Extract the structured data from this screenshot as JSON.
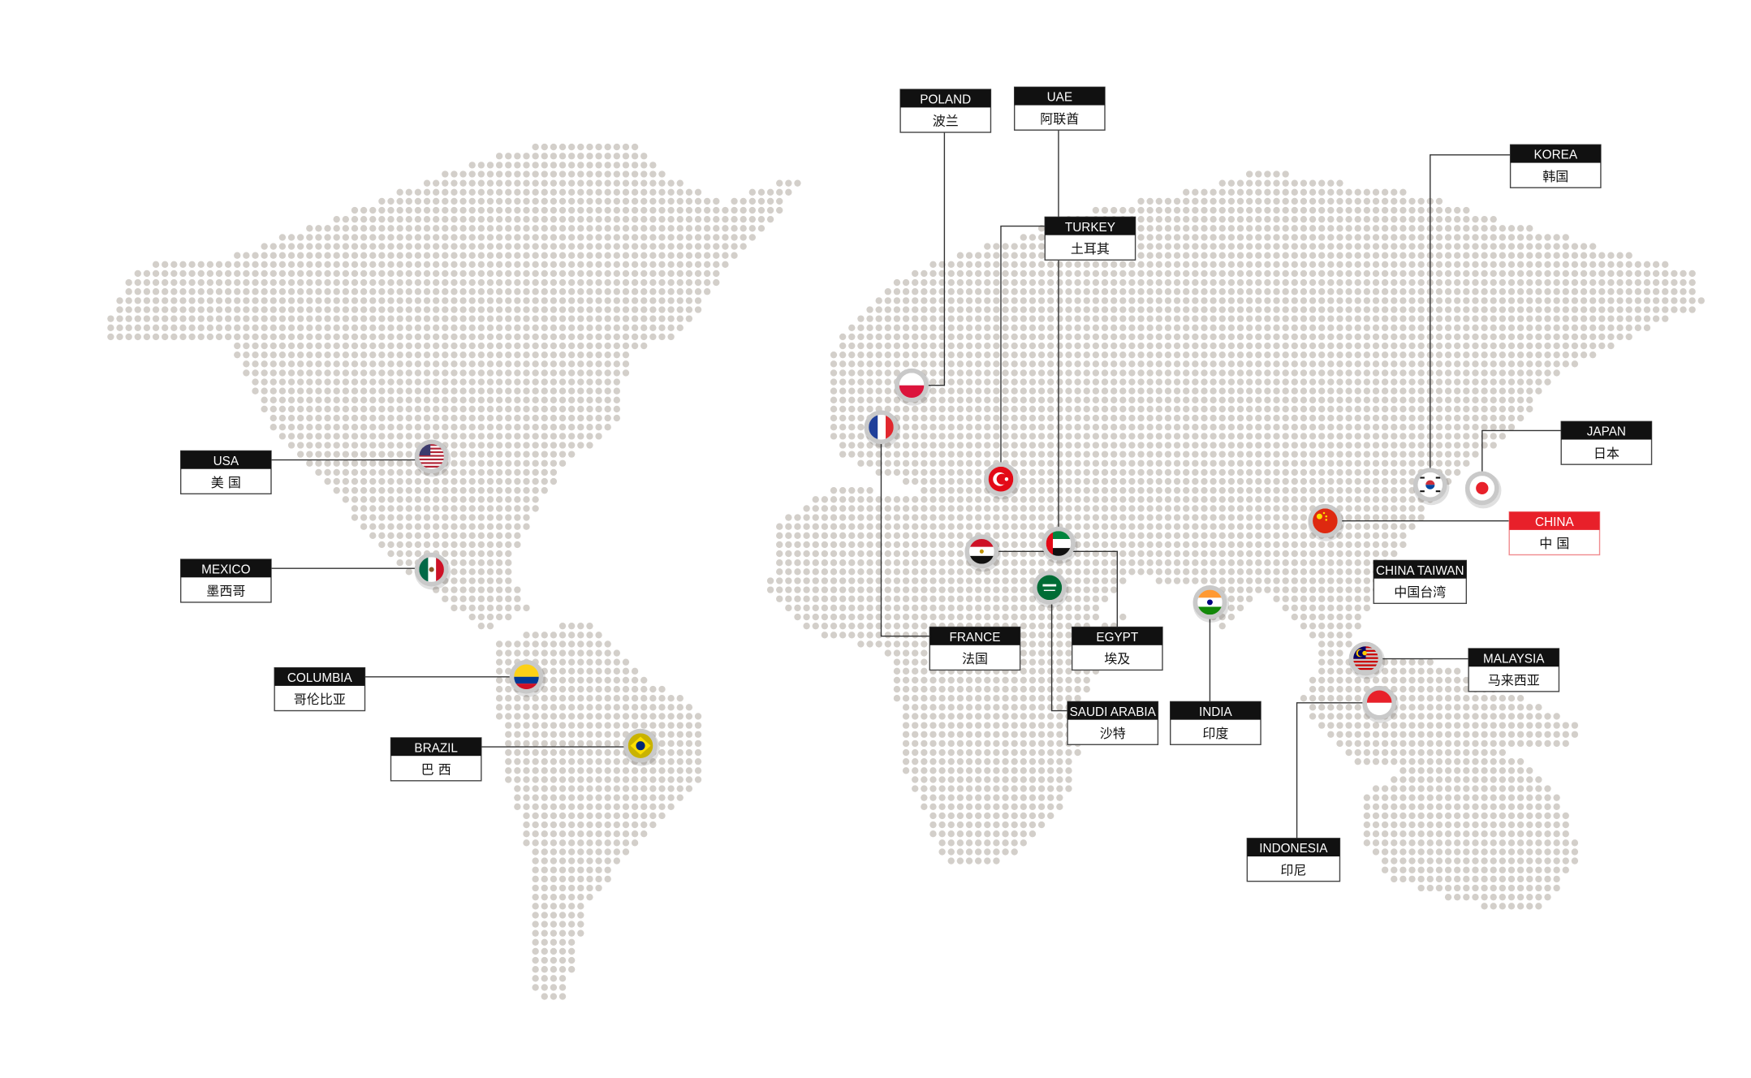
{
  "colors": {
    "dot": "#d3cfca",
    "label_header": "#111111",
    "highlight": "#e8202a",
    "ring": "#c9c9c9",
    "connector": "#333333"
  },
  "locations": [
    {
      "id": "poland",
      "en": "POLAND",
      "zh": "波兰",
      "flag": "poland-flag-icon"
    },
    {
      "id": "uae",
      "en": "UAE",
      "zh": "阿联酋",
      "flag": "uae-flag-icon"
    },
    {
      "id": "turkey",
      "en": "TURKEY",
      "zh": "土耳其",
      "flag": "turkey-flag-icon"
    },
    {
      "id": "korea",
      "en": "KOREA",
      "zh": "韩国",
      "flag": "korea-flag-icon"
    },
    {
      "id": "japan",
      "en": "JAPAN",
      "zh": "日本",
      "flag": "japan-flag-icon"
    },
    {
      "id": "china",
      "en": "CHINA",
      "zh": "中 国",
      "flag": "china-flag-icon",
      "highlight": true
    },
    {
      "id": "china_taiwan",
      "en": "CHINA TAIWAN",
      "zh": "中国台湾"
    },
    {
      "id": "malaysia",
      "en": "MALAYSIA",
      "zh": "马来西亚",
      "flag": "malaysia-flag-icon"
    },
    {
      "id": "indonesia",
      "en": "INDONESIA",
      "zh": "印尼",
      "flag": "indonesia-flag-icon"
    },
    {
      "id": "india",
      "en": "INDIA",
      "zh": "印度",
      "flag": "india-flag-icon"
    },
    {
      "id": "saudi",
      "en": "SAUDI ARABIA",
      "zh": "沙特",
      "flag": "saudi-flag-icon"
    },
    {
      "id": "egypt",
      "en": "EGYPT",
      "zh": "埃及",
      "flag": "egypt-flag-icon"
    },
    {
      "id": "france",
      "en": "FRANCE",
      "zh": "法国",
      "flag": "france-flag-icon"
    },
    {
      "id": "usa",
      "en": "USA",
      "zh": "美 国",
      "flag": "usa-flag-icon"
    },
    {
      "id": "mexico",
      "en": "MEXICO",
      "zh": "墨西哥",
      "flag": "mexico-flag-icon"
    },
    {
      "id": "columbia",
      "en": "COLUMBIA",
      "zh": "哥伦比亚",
      "flag": "colombia-flag-icon"
    },
    {
      "id": "brazil",
      "en": "BRAZIL",
      "zh": "巴 西",
      "flag": "brazil-flag-icon"
    }
  ]
}
